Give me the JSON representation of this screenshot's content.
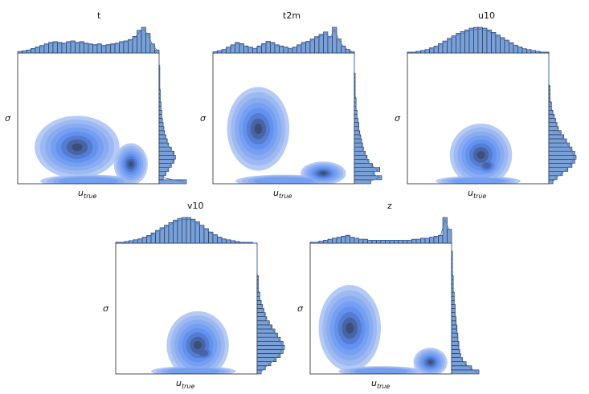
{
  "chart_data": [
    {
      "type": "heatmap",
      "title": "t",
      "xlabel": "u_true",
      "ylabel": "σ",
      "x_hist": [
        2,
        3,
        4,
        6,
        8,
        10,
        12,
        14,
        15,
        14,
        13,
        15,
        16,
        14,
        15,
        13,
        12,
        11,
        12,
        10,
        11,
        12,
        13,
        15,
        16,
        18,
        22,
        30,
        34,
        26,
        12,
        4
      ],
      "y_hist": [
        40,
        6,
        10,
        14,
        18,
        22,
        24,
        22,
        18,
        14,
        12,
        10,
        8,
        7,
        6,
        5,
        4,
        4,
        3,
        3,
        2,
        2,
        2,
        1,
        1,
        1,
        1,
        1,
        1,
        0,
        0,
        0
      ],
      "kde": [
        {
          "cx": 0.42,
          "cy": 0.28,
          "rx": 0.3,
          "ry": 0.24,
          "w": 1.0
        },
        {
          "cx": 0.8,
          "cy": 0.15,
          "rx": 0.12,
          "ry": 0.16,
          "w": 1.0
        },
        {
          "cx": 0.5,
          "cy": 0.02,
          "rx": 0.34,
          "ry": 0.05,
          "w": 0.5
        }
      ]
    },
    {
      "type": "heatmap",
      "title": "t2m",
      "xlabel": "u_true",
      "ylabel": "σ",
      "x_hist": [
        1,
        2,
        3,
        5,
        7,
        9,
        8,
        6,
        5,
        4,
        6,
        8,
        10,
        9,
        7,
        6,
        5,
        4,
        5,
        7,
        9,
        10,
        12,
        14,
        16,
        18,
        14,
        22,
        12,
        6,
        3,
        1
      ],
      "y_hist": [
        18,
        30,
        22,
        28,
        20,
        16,
        14,
        12,
        10,
        9,
        8,
        7,
        6,
        5,
        5,
        4,
        3,
        3,
        2,
        2,
        2,
        1,
        1,
        1,
        1,
        1,
        1,
        0,
        0,
        0,
        0,
        0
      ],
      "kde": [
        {
          "cx": 0.32,
          "cy": 0.42,
          "rx": 0.22,
          "ry": 0.32,
          "w": 1.0
        },
        {
          "cx": 0.78,
          "cy": 0.08,
          "rx": 0.16,
          "ry": 0.09,
          "w": 1.0
        },
        {
          "cx": 0.5,
          "cy": 0.02,
          "rx": 0.34,
          "ry": 0.05,
          "w": 0.5
        }
      ]
    },
    {
      "type": "heatmap",
      "title": "u10",
      "xlabel": "u_true",
      "ylabel": "σ",
      "x_hist": [
        1,
        1,
        2,
        3,
        4,
        6,
        8,
        11,
        14,
        17,
        20,
        23,
        25,
        27,
        29,
        30,
        30,
        29,
        27,
        24,
        21,
        18,
        15,
        12,
        9,
        7,
        5,
        4,
        3,
        2,
        1,
        1
      ],
      "y_hist": [
        3,
        6,
        10,
        14,
        17,
        19,
        20,
        19,
        17,
        15,
        13,
        11,
        9,
        7,
        6,
        5,
        4,
        3,
        2,
        2,
        1,
        1,
        1,
        1,
        0,
        0,
        0,
        0,
        0,
        0,
        0,
        0
      ],
      "kde": [
        {
          "cx": 0.52,
          "cy": 0.22,
          "rx": 0.22,
          "ry": 0.24,
          "w": 1.0
        },
        {
          "cx": 0.56,
          "cy": 0.14,
          "rx": 0.12,
          "ry": 0.1,
          "w": 0.8
        },
        {
          "cx": 0.5,
          "cy": 0.02,
          "rx": 0.3,
          "ry": 0.04,
          "w": 0.4
        }
      ]
    },
    {
      "type": "heatmap",
      "title": "v10",
      "xlabel": "u_true",
      "ylabel": "σ",
      "x_hist": [
        1,
        1,
        2,
        3,
        4,
        5,
        7,
        9,
        12,
        15,
        18,
        21,
        24,
        27,
        29,
        30,
        30,
        28,
        25,
        21,
        17,
        13,
        10,
        7,
        5,
        4,
        3,
        2,
        1,
        1,
        1,
        0
      ],
      "y_hist": [
        3,
        6,
        10,
        14,
        17,
        19,
        20,
        19,
        17,
        15,
        13,
        11,
        9,
        7,
        6,
        5,
        4,
        3,
        2,
        2,
        1,
        1,
        1,
        1,
        0,
        0,
        0,
        0,
        0,
        0,
        0,
        0
      ],
      "kde": [
        {
          "cx": 0.58,
          "cy": 0.22,
          "rx": 0.22,
          "ry": 0.26,
          "w": 1.0
        },
        {
          "cx": 0.62,
          "cy": 0.16,
          "rx": 0.13,
          "ry": 0.1,
          "w": 0.8
        },
        {
          "cx": 0.55,
          "cy": 0.02,
          "rx": 0.3,
          "ry": 0.04,
          "w": 0.4
        }
      ]
    },
    {
      "type": "heatmap",
      "title": "z",
      "xlabel": "u_true",
      "ylabel": "σ",
      "x_hist": [
        1,
        1,
        2,
        3,
        4,
        5,
        6,
        7,
        8,
        6,
        5,
        4,
        4,
        3,
        3,
        3,
        3,
        3,
        3,
        3,
        3,
        3,
        3,
        4,
        4,
        5,
        5,
        6,
        7,
        8,
        26,
        14
      ],
      "y_hist": [
        30,
        22,
        16,
        12,
        10,
        9,
        8,
        8,
        7,
        7,
        6,
        6,
        5,
        5,
        4,
        4,
        4,
        3,
        3,
        3,
        2,
        2,
        2,
        2,
        1,
        1,
        1,
        1,
        1,
        1,
        0,
        0
      ],
      "kde": [
        {
          "cx": 0.28,
          "cy": 0.35,
          "rx": 0.22,
          "ry": 0.33,
          "w": 1.0
        },
        {
          "cx": 0.85,
          "cy": 0.09,
          "rx": 0.12,
          "ry": 0.11,
          "w": 1.0
        },
        {
          "cx": 0.5,
          "cy": 0.02,
          "rx": 0.3,
          "ry": 0.04,
          "w": 0.4
        }
      ]
    }
  ],
  "colors": {
    "kde_light": "#adc4f3",
    "kde_mid": "#5c8df0",
    "kde_dark": "#3b4a73",
    "hist_fill": "#7aa0d8",
    "hist_edge": "#1a2d4d"
  }
}
